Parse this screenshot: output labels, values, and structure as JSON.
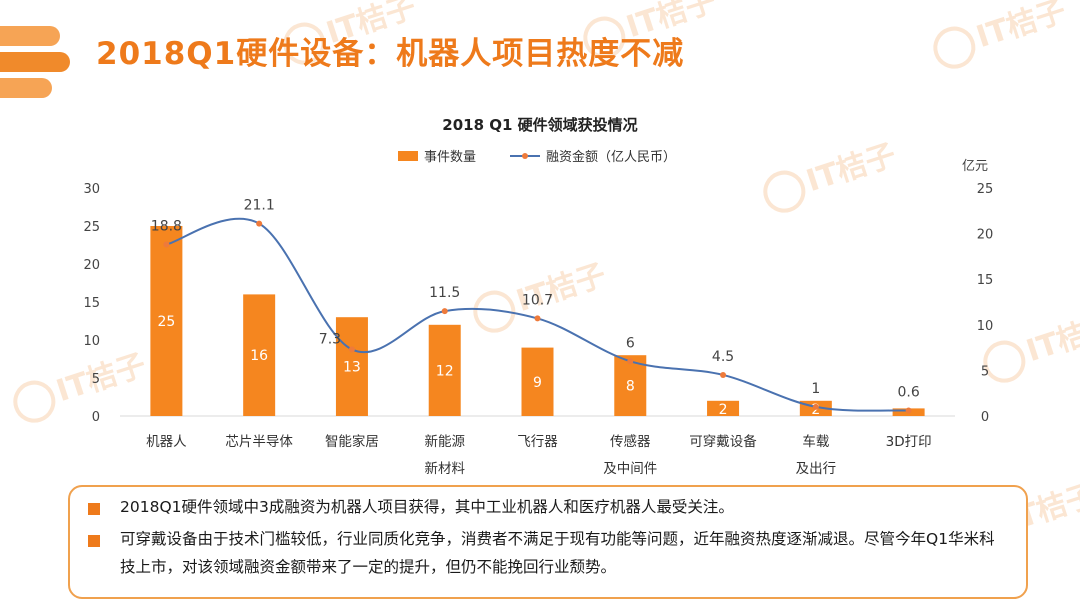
{
  "page": {
    "title": "2018Q1硬件设备：机器人项目热度不减",
    "watermark": "IT桔子",
    "accent_color": "#ee7a1b"
  },
  "chart_data": {
    "type": "bar+line",
    "title": "2018 Q1 硬件领域获投情况",
    "categories": [
      "机器人",
      "芯片半导体",
      "智能家居",
      "新能源\n新材料",
      "飞行器",
      "传感器\n及中间件",
      "可穿戴设备",
      "车载\n及出行",
      "3D打印"
    ],
    "series": [
      {
        "name": "事件数量",
        "type": "bar",
        "axis": "left",
        "color": "#f5861f",
        "values": [
          25,
          16,
          13,
          12,
          9,
          8,
          2,
          2,
          1
        ],
        "labels": [
          "25",
          "16",
          "13",
          "12",
          "9",
          "8",
          "2",
          "2",
          ""
        ]
      },
      {
        "name": "融资金额（亿人民币）",
        "type": "line",
        "axis": "right",
        "color": "#4a72b0",
        "values": [
          18.8,
          21.1,
          7.3,
          11.5,
          10.7,
          6,
          4.5,
          1,
          0.6
        ],
        "labels": [
          "18.8",
          "21.1",
          "7.3",
          "11.5",
          "10.7",
          "6",
          "4.5",
          "1",
          "0.6"
        ]
      }
    ],
    "y_left": {
      "range": [
        0,
        30
      ],
      "ticks": [
        "0",
        "5",
        "10",
        "15",
        "20",
        "25",
        "30"
      ]
    },
    "y_right": {
      "range": [
        0,
        25
      ],
      "ticks": [
        "0",
        "5",
        "10",
        "15",
        "20",
        "25"
      ],
      "unit": "亿元"
    },
    "legend": "top-center",
    "grid": false
  },
  "notes": [
    "2018Q1硬件领域中3成融资为机器人项目获得，其中工业机器人和医疗机器人最受关注。",
    "可穿戴设备由于技术门槛较低，行业同质化竞争，消费者不满足于现有功能等问题，近年融资热度逐渐减退。尽管今年Q1华米科技上市，对该领域融资金额带来了一定的提升，但仍不能挽回行业颓势。"
  ]
}
